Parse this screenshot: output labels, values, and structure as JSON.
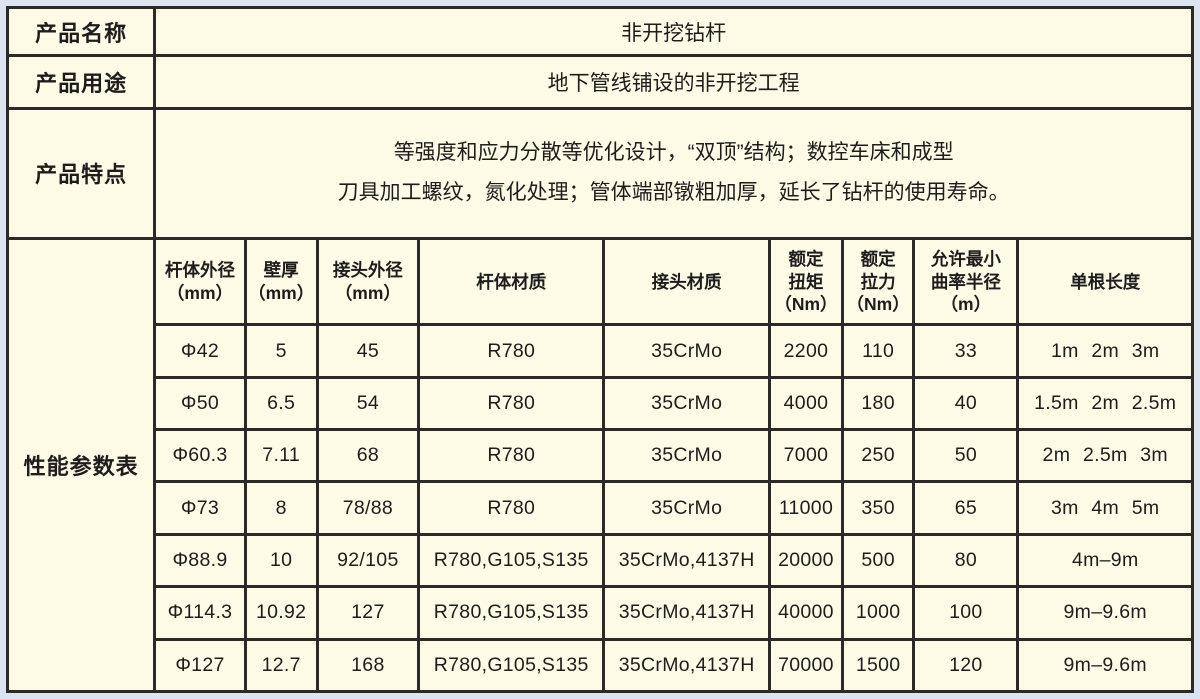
{
  "palette": {
    "outer_margin": "#dee3f1",
    "table_background": "#fdfae6",
    "border": "#2b2a26",
    "text": "#1d1d1b"
  },
  "info": {
    "name_label": "产品名称",
    "name_value": "非开挖钻杆",
    "use_label": "产品用途",
    "use_value": "地下管线铺设的非开挖工程",
    "features_label": "产品特点",
    "features_line1": "等强度和应力分散等优化设计，“双顶”结构；数控车床和成型",
    "features_line2": "刀具加工螺纹，氮化处理；管体端部镦粗加厚，延长了钻杆的使用寿命。"
  },
  "params": {
    "label": "性能参数表",
    "headers": [
      [
        "杆体外径",
        "（mm）"
      ],
      [
        "壁厚",
        "（mm）"
      ],
      [
        "接头外径",
        "（mm）"
      ],
      [
        "杆体材质"
      ],
      [
        "接头材质"
      ],
      [
        "额定",
        "扭矩",
        "（Nm）"
      ],
      [
        "额定",
        "拉力",
        "（Nm）"
      ],
      [
        "允许最小",
        "曲率半径",
        "（m）"
      ],
      [
        "单根长度"
      ]
    ],
    "rows": [
      [
        "Φ42",
        "5",
        "45",
        "R780",
        "35CrMo",
        "2200",
        "110",
        "33",
        "1m 2m 3m"
      ],
      [
        "Φ50",
        "6.5",
        "54",
        "R780",
        "35CrMo",
        "4000",
        "180",
        "40",
        "1.5m 2m 2.5m"
      ],
      [
        "Φ60.3",
        "7.11",
        "68",
        "R780",
        "35CrMo",
        "7000",
        "250",
        "50",
        "2m 2.5m 3m"
      ],
      [
        "Φ73",
        "8",
        "78/88",
        "R780",
        "35CrMo",
        "11000",
        "350",
        "65",
        "3m 4m 5m"
      ],
      [
        "Φ88.9",
        "10",
        "92/105",
        "R780,G105,S135",
        "35CrMo,4137H",
        "20000",
        "500",
        "80",
        "4m–9m"
      ],
      [
        "Φ114.3",
        "10.92",
        "127",
        "R780,G105,S135",
        "35CrMo,4137H",
        "40000",
        "1000",
        "100",
        "9m–9.6m"
      ],
      [
        "Φ127",
        "12.7",
        "168",
        "R780,G105,S135",
        "35CrMo,4137H",
        "70000",
        "1500",
        "120",
        "9m–9.6m"
      ]
    ]
  }
}
